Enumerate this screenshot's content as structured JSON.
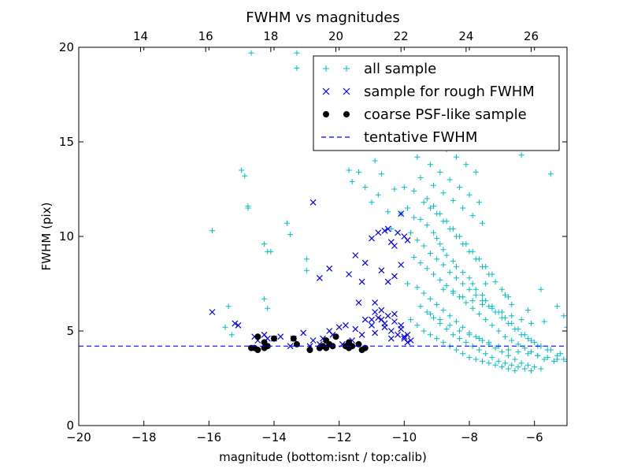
{
  "chart_data": {
    "type": "scatter",
    "title": "FWHM vs magnitudes",
    "xlabel": "magnitude (bottom:isnt / top:calib)",
    "ylabel": "FWHM (pix)",
    "xlim": [
      -20,
      -5
    ],
    "ylim": [
      0,
      20
    ],
    "x_ticks": [
      -20,
      -18,
      -16,
      -14,
      -12,
      -10,
      -8,
      -6
    ],
    "x_tick_labels": [
      "−20",
      "−18",
      "−16",
      "−14",
      "−12",
      "−10",
      "−8",
      "−6"
    ],
    "y_ticks": [
      0,
      5,
      10,
      15,
      20
    ],
    "y_tick_labels": [
      "0",
      "5",
      "10",
      "15",
      "20"
    ],
    "top_axis": {
      "label_values": [
        14,
        16,
        18,
        20,
        22,
        24,
        26
      ],
      "tick_labels": [
        "14",
        "16",
        "18",
        "20",
        "22",
        "24",
        "26"
      ],
      "offset": 32.1
    },
    "grid": false,
    "legend_position": "top-right",
    "series": [
      {
        "name": "all sample",
        "marker": "plus",
        "color": "#00bfbf",
        "x": [
          -14.7,
          -13.3,
          -13.3,
          -15.0,
          -14.9,
          -14.8,
          -14.8,
          -15.9,
          -15.4,
          -14.3,
          -14.2,
          -14.1,
          -13.6,
          -13.5,
          -13.0,
          -13.0,
          -14.3,
          -14.2,
          -15.5,
          -15.3,
          -11.7,
          -11.4,
          -11.2,
          -10.9,
          -10.7,
          -10.3,
          -10.0,
          -11.6,
          -11.0,
          -10.8,
          -10.5,
          -10.1,
          -10.4,
          -9.9,
          -9.7,
          -9.5,
          -9.3,
          -9.1,
          -9.0,
          -8.9,
          -8.8,
          -8.7,
          -8.5,
          -8.4,
          -8.2,
          -8.0,
          -7.9,
          -7.8,
          -7.6,
          -7.5,
          -7.3,
          -7.1,
          -6.9,
          -6.7,
          -6.5,
          -6.3,
          -6.1,
          -5.9,
          -5.6,
          -5.3,
          -5.1,
          -9.8,
          -9.6,
          -9.4,
          -9.2,
          -9.0,
          -8.8,
          -8.6,
          -8.4,
          -8.2,
          -8.0,
          -7.8,
          -7.6,
          -7.4,
          -7.2,
          -7.0,
          -6.8,
          -6.6,
          -6.4,
          -6.2,
          -6.0,
          -5.8,
          -5.5,
          -5.2,
          -9.7,
          -9.5,
          -9.3,
          -9.1,
          -8.9,
          -8.7,
          -8.5,
          -8.3,
          -8.1,
          -7.9,
          -7.7,
          -7.5,
          -7.3,
          -7.1,
          -6.9,
          -6.7,
          -6.5,
          -6.3,
          -6.1,
          -5.9,
          -5.7,
          -5.4,
          -9.9,
          -9.6,
          -9.4,
          -9.2,
          -9.0,
          -8.8,
          -8.6,
          -8.4,
          -8.2,
          -8.0,
          -7.8,
          -7.6,
          -7.4,
          -7.2,
          -7.0,
          -6.8,
          -6.6,
          -6.4,
          -6.2,
          -6.0,
          -5.8,
          -9.5,
          -9.3,
          -9.1,
          -8.9,
          -8.7,
          -8.5,
          -8.3,
          -8.1,
          -7.9,
          -7.7,
          -7.5,
          -7.3,
          -7.1,
          -6.9,
          -6.7,
          -6.5,
          -6.3,
          -6.1,
          -9.8,
          -9.6,
          -9.4,
          -9.2,
          -9.0,
          -8.8,
          -8.6,
          -8.4,
          -8.2,
          -8.0,
          -7.8,
          -7.6,
          -7.4,
          -7.2,
          -7.0,
          -6.8,
          -6.6,
          -9.4,
          -9.2,
          -9.0,
          -8.8,
          -8.6,
          -8.4,
          -8.2,
          -8.0,
          -7.8,
          -7.6,
          -7.4,
          -7.2,
          -7.0,
          -6.8,
          -9.7,
          -9.3,
          -9.1,
          -8.9,
          -8.7,
          -8.5,
          -8.3,
          -8.1,
          -7.9,
          -7.7,
          -7.5,
          -7.3,
          -9.5,
          -9.1,
          -8.8,
          -8.5,
          -8.2,
          -7.9,
          -7.6,
          -9.6,
          -9.2,
          -8.9,
          -8.6,
          -8.3,
          -8.0,
          -7.7,
          -9.3,
          -9.0,
          -8.7,
          -8.4,
          -8.1,
          -7.8,
          -8.0,
          -7.0,
          -6.6,
          -6.4,
          -5.5,
          -5.8,
          -6.7,
          -5.1,
          -5.3,
          -5.0,
          -7.5,
          -6.9,
          -6.2,
          -5.7,
          -9.2,
          -8.9,
          -8.6,
          -8.3,
          -8.0,
          -7.7,
          -7.4,
          -7.1,
          -6.8,
          -6.5,
          -6.2,
          -5.9,
          -5.6,
          -5.3,
          -5.0,
          -8.8,
          -8.5,
          -8.2,
          -7.9,
          -7.6,
          -7.3,
          -7.0,
          -6.7,
          -6.4,
          -6.1
        ],
        "y": [
          19.7,
          19.7,
          18.9,
          13.5,
          13.2,
          11.6,
          11.5,
          10.3,
          6.3,
          9.6,
          9.2,
          9.2,
          10.7,
          10.1,
          8.8,
          8.2,
          6.7,
          6.2,
          5.2,
          4.8,
          13.5,
          13.4,
          12.6,
          14.0,
          13.3,
          12.5,
          12.6,
          12.9,
          11.8,
          12.2,
          11.3,
          11.2,
          10.4,
          11.5,
          11.0,
          10.9,
          10.6,
          10.2,
          9.9,
          9.6,
          9.3,
          9.0,
          8.7,
          8.4,
          8.1,
          7.8,
          7.5,
          7.2,
          6.9,
          6.6,
          6.3,
          6.0,
          5.7,
          5.4,
          5.1,
          4.8,
          4.5,
          4.2,
          4.0,
          3.7,
          3.5,
          10.2,
          9.8,
          9.5,
          9.1,
          8.8,
          8.5,
          8.1,
          7.8,
          7.5,
          7.2,
          6.9,
          6.6,
          6.3,
          6.0,
          5.7,
          5.4,
          5.1,
          4.8,
          4.6,
          4.4,
          4.2,
          4.0,
          3.8,
          8.9,
          8.6,
          8.3,
          8.0,
          7.7,
          7.4,
          7.1,
          6.8,
          6.5,
          6.2,
          5.9,
          5.6,
          5.3,
          5.0,
          4.7,
          4.5,
          4.3,
          4.1,
          3.9,
          3.7,
          3.5,
          3.4,
          7.5,
          7.3,
          7.0,
          6.7,
          6.4,
          6.1,
          5.8,
          5.5,
          5.2,
          4.9,
          4.7,
          4.5,
          4.3,
          4.1,
          3.9,
          3.7,
          3.5,
          3.3,
          3.2,
          3.1,
          3.0,
          6.3,
          6.0,
          5.7,
          5.4,
          5.1,
          4.8,
          4.6,
          4.4,
          4.2,
          4.0,
          3.8,
          3.6,
          3.4,
          3.3,
          3.2,
          3.1,
          3.0,
          2.9,
          5.6,
          5.3,
          5.0,
          4.8,
          4.6,
          4.4,
          4.2,
          4.0,
          3.8,
          3.6,
          3.5,
          3.4,
          3.3,
          3.2,
          3.1,
          3.0,
          2.9,
          11.8,
          11.5,
          11.2,
          10.8,
          10.4,
          10.0,
          9.6,
          9.2,
          8.8,
          8.4,
          8.0,
          7.6,
          7.2,
          6.8,
          12.4,
          12.0,
          11.6,
          11.2,
          10.8,
          10.4,
          10.0,
          9.6,
          9.2,
          8.8,
          8.4,
          8.0,
          13.1,
          12.7,
          12.3,
          11.9,
          11.5,
          11.1,
          10.7,
          14.2,
          13.8,
          13.4,
          13.0,
          12.6,
          12.2,
          11.8,
          15.4,
          15.0,
          14.6,
          14.2,
          13.8,
          13.4,
          15.3,
          15.3,
          15.0,
          14.3,
          13.3,
          7.2,
          6.4,
          5.8,
          6.3,
          5.2,
          7.5,
          6.9,
          6.1,
          5.5,
          5.9,
          5.6,
          5.3,
          5.0,
          4.8,
          4.6,
          4.4,
          4.2,
          4.0,
          3.9,
          3.8,
          3.7,
          3.6,
          3.5,
          3.4,
          7.2,
          7.0,
          6.8,
          6.6,
          6.4,
          6.2,
          6.0,
          5.8,
          5.6,
          5.4
        ]
      },
      {
        "name": "sample for rough FWHM",
        "marker": "x",
        "color": "#0000ff",
        "x": [
          -15.9,
          -15.2,
          -15.1,
          -14.6,
          -14.5,
          -14.3,
          -14.2,
          -14.0,
          -13.8,
          -13.5,
          -13.4,
          -13.1,
          -12.9,
          -12.8,
          -12.6,
          -12.5,
          -12.3,
          -12.2,
          -12.0,
          -11.9,
          -11.8,
          -11.6,
          -11.5,
          -11.3,
          -11.2,
          -11.0,
          -10.9,
          -10.7,
          -10.6,
          -10.4,
          -10.3,
          -10.1,
          -10.0,
          -9.9,
          -9.8,
          -12.8,
          -12.6,
          -12.3,
          -11.5,
          -11.2,
          -11.0,
          -10.8,
          -10.6,
          -10.5,
          -10.4,
          -10.3,
          -10.2,
          -10.1,
          -10.0,
          -9.9,
          -10.7,
          -10.5,
          -10.3,
          -10.1,
          -11.4,
          -11.0,
          -10.9,
          -10.8,
          -10.6,
          -10.4,
          -10.2,
          -10.0,
          -9.9,
          -11.7,
          -11.3,
          -10.9,
          -10.7,
          -10.5,
          -10.3,
          -10.1
        ],
        "y": [
          6.0,
          5.4,
          5.3,
          4.7,
          4.5,
          4.8,
          4.6,
          4.6,
          4.7,
          4.2,
          4.6,
          4.9,
          4.2,
          4.5,
          4.3,
          4.6,
          5.0,
          4.8,
          5.2,
          4.3,
          5.3,
          4.5,
          5.1,
          4.8,
          5.6,
          5.3,
          4.9,
          5.6,
          5.2,
          4.6,
          5.9,
          5.1,
          4.7,
          4.8,
          4.5,
          11.8,
          7.8,
          8.3,
          9.0,
          8.6,
          9.9,
          10.2,
          10.3,
          10.4,
          9.7,
          9.5,
          10.2,
          11.2,
          10.0,
          9.8,
          8.2,
          7.6,
          7.9,
          8.5,
          6.5,
          5.6,
          6.0,
          5.7,
          5.4,
          5.0,
          4.8,
          4.6,
          4.4,
          8.0,
          7.6,
          6.5,
          6.1,
          5.8,
          5.5,
          5.3
        ]
      },
      {
        "name": "coarse PSF-like sample",
        "marker": "o",
        "color": "#000000",
        "x": [
          -14.7,
          -14.6,
          -14.5,
          -14.3,
          -14.2,
          -14.0,
          -13.4,
          -13.3,
          -12.9,
          -12.6,
          -12.5,
          -12.4,
          -12.3,
          -12.2,
          -12.1,
          -11.8,
          -11.7,
          -11.6,
          -11.4,
          -11.3,
          -11.2,
          -14.5,
          -14.3,
          -12.4,
          -11.7
        ],
        "y": [
          4.1,
          4.1,
          4.0,
          4.1,
          4.2,
          4.6,
          4.6,
          4.3,
          4.0,
          4.1,
          4.2,
          4.1,
          4.3,
          4.2,
          4.7,
          4.2,
          4.1,
          4.2,
          4.3,
          4.0,
          4.1,
          4.7,
          4.4,
          4.5,
          4.4
        ]
      }
    ],
    "reference_line": {
      "name": "tentative FWHM",
      "style": "dashed",
      "color": "#0000ff",
      "y": 4.2
    }
  }
}
